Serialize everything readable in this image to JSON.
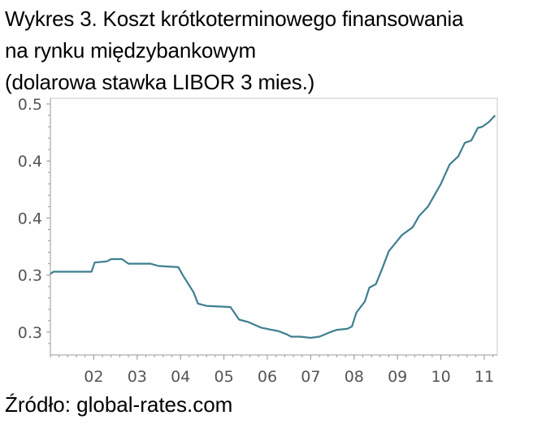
{
  "title_lines": [
    "Wykres 3. Koszt krótkoterminowego finansowania",
    "na rynku międzybankowym",
    "(dolarowa stawka LIBOR 3 mies.)"
  ],
  "source": "Źródło: global-rates.com",
  "colors": {
    "line": "#3d7f8f",
    "axis": "#9a9a9a",
    "tick_text": "#555555",
    "plot_border": "#c8c8c8"
  },
  "chart_data": {
    "type": "line",
    "title": "",
    "xlabel": "",
    "ylabel": "",
    "grid": false,
    "legend": "none",
    "x_ticks": [
      "02",
      "03",
      "04",
      "05",
      "06",
      "07",
      "08",
      "09",
      "10",
      "11"
    ],
    "y_tick_labels": [
      "0.5",
      "0.4",
      "0.4",
      "0.3",
      "0.3"
    ],
    "y_tick_values": [
      0.5,
      0.45,
      0.4,
      0.35,
      0.3
    ],
    "xlim": [
      1.0,
      11.3
    ],
    "ylim": [
      0.28,
      0.505
    ],
    "series": [
      {
        "x": [
          1.0,
          1.07,
          1.95,
          2.02,
          2.3,
          2.4,
          2.65,
          2.8,
          3.3,
          3.5,
          3.95,
          4.05,
          4.3,
          4.4,
          4.6,
          5.15,
          5.35,
          5.55,
          5.85,
          6.1,
          6.25,
          6.45,
          6.55,
          6.75,
          7.0,
          7.2,
          7.45,
          7.6,
          7.85,
          7.95,
          8.05,
          8.25,
          8.35,
          8.5,
          8.65,
          8.8,
          8.95,
          9.1,
          9.35,
          9.5,
          9.7,
          9.85,
          10.0,
          10.2,
          10.4,
          10.55,
          10.7,
          10.85,
          10.95,
          11.1,
          11.25
        ],
        "y": [
          0.351,
          0.353,
          0.353,
          0.361,
          0.362,
          0.364,
          0.364,
          0.36,
          0.36,
          0.358,
          0.357,
          0.35,
          0.335,
          0.325,
          0.323,
          0.322,
          0.311,
          0.309,
          0.304,
          0.302,
          0.301,
          0.298,
          0.296,
          0.296,
          0.295,
          0.296,
          0.3,
          0.302,
          0.303,
          0.305,
          0.317,
          0.327,
          0.339,
          0.342,
          0.356,
          0.371,
          0.378,
          0.385,
          0.392,
          0.402,
          0.41,
          0.42,
          0.43,
          0.447,
          0.454,
          0.466,
          0.468,
          0.479,
          0.48,
          0.484,
          0.49
        ]
      }
    ]
  }
}
